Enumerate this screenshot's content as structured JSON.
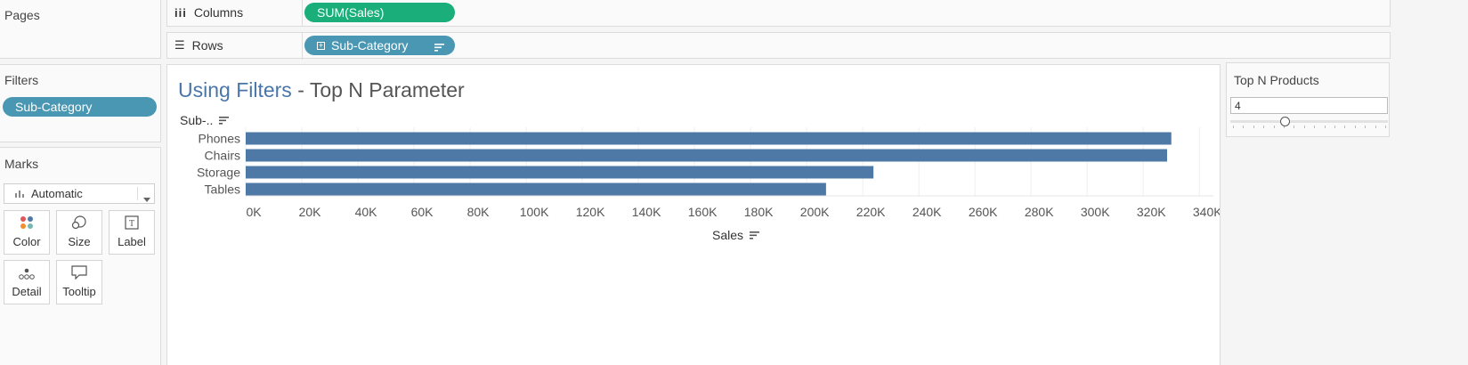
{
  "shelves": {
    "pages_title": "Pages",
    "columns_label": "Columns",
    "columns_pill": "SUM(Sales)",
    "rows_label": "Rows",
    "rows_pill": "Sub-Category"
  },
  "filters": {
    "title": "Filters",
    "pill": "Sub-Category"
  },
  "marks": {
    "title": "Marks",
    "type": "Automatic",
    "cards": [
      "Color",
      "Size",
      "Label",
      "Detail",
      "Tooltip"
    ]
  },
  "worksheet": {
    "title_main": "Using Filters",
    "title_rest": " - Top N Parameter",
    "row_header": "Sub-..",
    "x_axis_title": "Sales"
  },
  "parameter": {
    "title": "Top N Products",
    "value": "4",
    "slider_fraction": 0.35
  },
  "colors": {
    "bar": "#4e79a7",
    "green_pill": "#1aaf7a",
    "blue_pill": "#4a97b3",
    "title_blue": "#4a75a8"
  },
  "chart_data": {
    "type": "bar",
    "orientation": "horizontal",
    "categories": [
      "Phones",
      "Chairs",
      "Storage",
      "Tables"
    ],
    "values": [
      330000,
      328500,
      223800,
      206900
    ],
    "xlabel": "Sales",
    "ylabel": "Sub-..",
    "xlim": [
      0,
      345000
    ],
    "x_ticks": [
      "0K",
      "20K",
      "40K",
      "60K",
      "80K",
      "100K",
      "120K",
      "140K",
      "160K",
      "180K",
      "200K",
      "220K",
      "240K",
      "260K",
      "280K",
      "300K",
      "320K",
      "340K"
    ],
    "grid": true
  }
}
